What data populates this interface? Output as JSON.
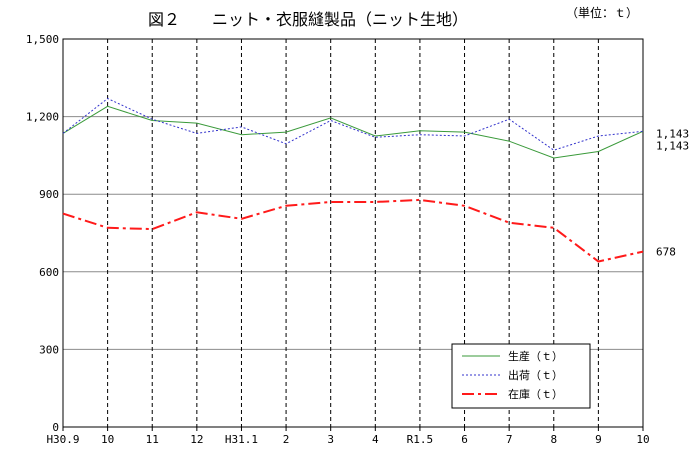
{
  "chart_data": {
    "type": "line",
    "title": "図２　　ニット・衣服縫製品（ニット生地）",
    "unit_note": "（単位：ｔ）",
    "categories": [
      "H30.9",
      "10",
      "11",
      "12",
      "H31.1",
      "2",
      "3",
      "4",
      "R1.5",
      "6",
      "7",
      "8",
      "9",
      "10"
    ],
    "ylim": [
      0,
      1500
    ],
    "yticks": [
      0,
      300,
      600,
      900,
      1200,
      1500
    ],
    "ytick_labels": [
      "0",
      "300",
      "600",
      "900",
      "1,200",
      "1,500"
    ],
    "grid": true,
    "legend_position": "bottom-right",
    "series": [
      {
        "name": "生産（ｔ）",
        "color": "#3a9a3a",
        "dash": "solid",
        "values": [
          1135,
          1240,
          1185,
          1175,
          1130,
          1140,
          1195,
          1125,
          1145,
          1140,
          1105,
          1040,
          1065,
          1143
        ]
      },
      {
        "name": "出荷（ｔ）",
        "color": "#3333cc",
        "dash": "dotted",
        "values": [
          1135,
          1270,
          1190,
          1135,
          1160,
          1095,
          1185,
          1120,
          1130,
          1125,
          1190,
          1070,
          1125,
          1143
        ]
      },
      {
        "name": "在庫（ｔ）",
        "color": "#ff1a1a",
        "dash": "dashdot",
        "values": [
          825,
          770,
          765,
          830,
          805,
          855,
          870,
          870,
          878,
          855,
          790,
          770,
          640,
          678
        ]
      }
    ],
    "end_labels": [
      "1,143",
      "1,143",
      "678"
    ]
  }
}
